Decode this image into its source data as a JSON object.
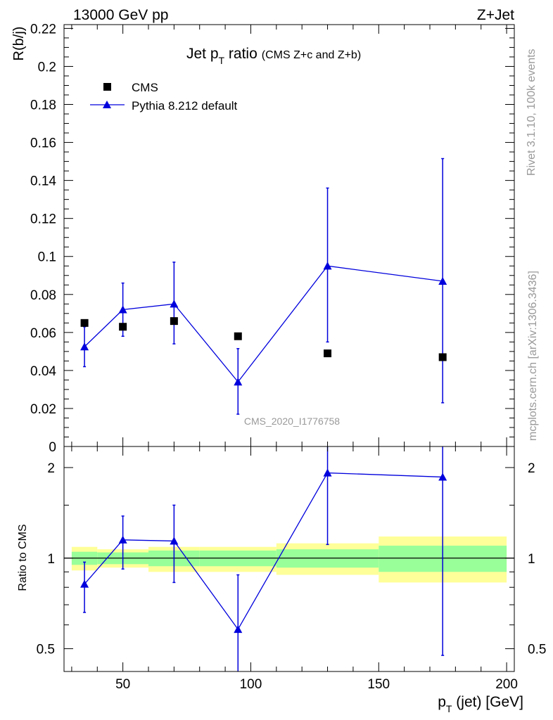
{
  "header": {
    "top_left": "13000 GeV pp",
    "top_right": "Z+Jet",
    "side_rivet": "Rivet 3.1.10,  100k events",
    "side_mcplots": "mcplots.cern.ch [arXiv:1306.3436]",
    "analysis_id": "CMS_2020_I1776758"
  },
  "colors": {
    "data": "#000000",
    "mc": "#0000dd",
    "band_inner": "#99ff99",
    "band_outer": "#ffff99",
    "watermark": "#999999"
  },
  "chart_data": [
    {
      "type": "line",
      "title": "Jet p",
      "title_sub": "T",
      "title_tail": " ratio",
      "subtitle": "(CMS  Z+c and Z+b)",
      "ylabel": "R(b/j)",
      "xlim": [
        27,
        203
      ],
      "ylim": [
        0,
        0.222
      ],
      "y_ticks": [
        0,
        0.02,
        0.04,
        0.06,
        0.08,
        0.1,
        0.12,
        0.14,
        0.16,
        0.18,
        0.2,
        0.22
      ],
      "y_tick_labels": [
        "0",
        "0.02",
        "0.04",
        "0.06",
        "0.08",
        "0.1",
        "0.12",
        "0.14",
        "0.16",
        "0.18",
        "0.2",
        "0.22"
      ],
      "legend": [
        "CMS",
        "Pythia 8.212 default"
      ],
      "series": [
        {
          "name": "CMS",
          "marker": "square",
          "x": [
            35,
            50,
            70,
            95,
            130,
            175
          ],
          "values": [
            0.065,
            0.063,
            0.066,
            0.058,
            0.049,
            0.047
          ]
        },
        {
          "name": "Pythia 8.212 default",
          "marker": "triangle",
          "x": [
            35,
            50,
            70,
            95,
            130,
            175
          ],
          "values": [
            0.0525,
            0.072,
            0.075,
            0.034,
            0.095,
            0.087
          ],
          "err_low": [
            0.042,
            0.058,
            0.054,
            0.017,
            0.055,
            0.023
          ],
          "err_high": [
            0.063,
            0.086,
            0.097,
            0.0515,
            0.136,
            0.1515
          ]
        }
      ]
    },
    {
      "type": "line",
      "ylabel": "Ratio to CMS",
      "xlabel": "p",
      "xlabel_sub": "T",
      "xlabel_tail": " (jet) [GeV]",
      "xlim": [
        27,
        203
      ],
      "ylim": [
        0.42,
        2.35
      ],
      "y_scale": "log",
      "y_ticks": [
        0.5,
        1,
        2
      ],
      "y_tick_labels": [
        "0.5",
        "1",
        "2"
      ],
      "x_ticks": [
        50,
        100,
        150,
        200
      ],
      "x_tick_labels": [
        "50",
        "100",
        "150",
        "200"
      ],
      "bands": [
        {
          "x0": 30,
          "x1": 40,
          "inner": [
            0.95,
            1.05
          ],
          "outer": [
            0.91,
            1.09
          ]
        },
        {
          "x0": 40,
          "x1": 60,
          "inner": [
            0.955,
            1.045
          ],
          "outer": [
            0.93,
            1.07
          ]
        },
        {
          "x0": 60,
          "x1": 80,
          "inner": [
            0.94,
            1.06
          ],
          "outer": [
            0.9,
            1.09
          ]
        },
        {
          "x0": 80,
          "x1": 110,
          "inner": [
            0.94,
            1.06
          ],
          "outer": [
            0.9,
            1.09
          ]
        },
        {
          "x0": 110,
          "x1": 150,
          "inner": [
            0.93,
            1.07
          ],
          "outer": [
            0.88,
            1.12
          ]
        },
        {
          "x0": 150,
          "x1": 200,
          "inner": [
            0.9,
            1.1
          ],
          "outer": [
            0.83,
            1.18
          ]
        }
      ],
      "series": [
        {
          "name": "Pythia 8.212 default",
          "marker": "triangle",
          "x": [
            35,
            50,
            70,
            95,
            130,
            175
          ],
          "values": [
            0.82,
            1.15,
            1.14,
            0.58,
            1.92,
            1.86
          ],
          "err_low": [
            0.66,
            0.92,
            0.83,
            0.3,
            1.11,
            0.475
          ],
          "err_high": [
            0.97,
            1.38,
            1.5,
            0.88,
            2.6,
            2.6
          ]
        }
      ]
    }
  ]
}
